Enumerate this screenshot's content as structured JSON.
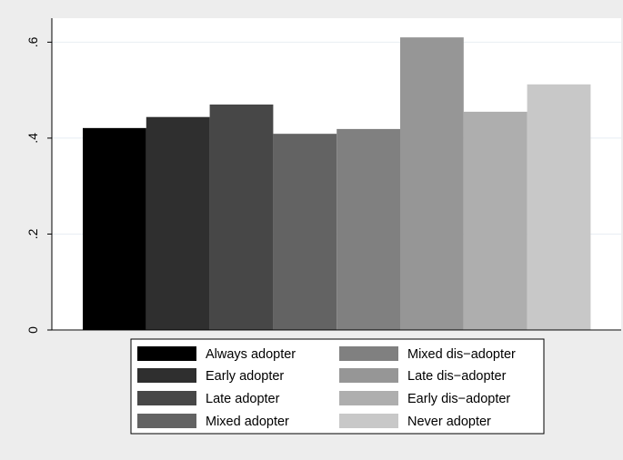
{
  "chart_data": {
    "type": "bar",
    "title": "",
    "xlabel": "",
    "ylabel": "",
    "ylim": [
      0,
      0.65
    ],
    "yticks": [
      0,
      0.2,
      0.4,
      0.6
    ],
    "ytick_labels": [
      "0",
      ".2",
      ".4",
      ".6"
    ],
    "grid": true,
    "legend_position": "bottom",
    "series": [
      {
        "name": "Always adopter",
        "value": 0.421,
        "color": "#000000"
      },
      {
        "name": "Early adopter",
        "value": 0.444,
        "color": "#2f2f2f"
      },
      {
        "name": "Late adopter",
        "value": 0.47,
        "color": "#474747"
      },
      {
        "name": "Mixed adopter",
        "value": 0.409,
        "color": "#636363"
      },
      {
        "name": "Mixed dis−adopter",
        "value": 0.419,
        "color": "#808080"
      },
      {
        "name": "Late dis−adopter",
        "value": 0.61,
        "color": "#969696"
      },
      {
        "name": "Early dis−adopter",
        "value": 0.455,
        "color": "#aeaeae"
      },
      {
        "name": "Never adopter",
        "value": 0.512,
        "color": "#c8c8c8"
      }
    ]
  }
}
